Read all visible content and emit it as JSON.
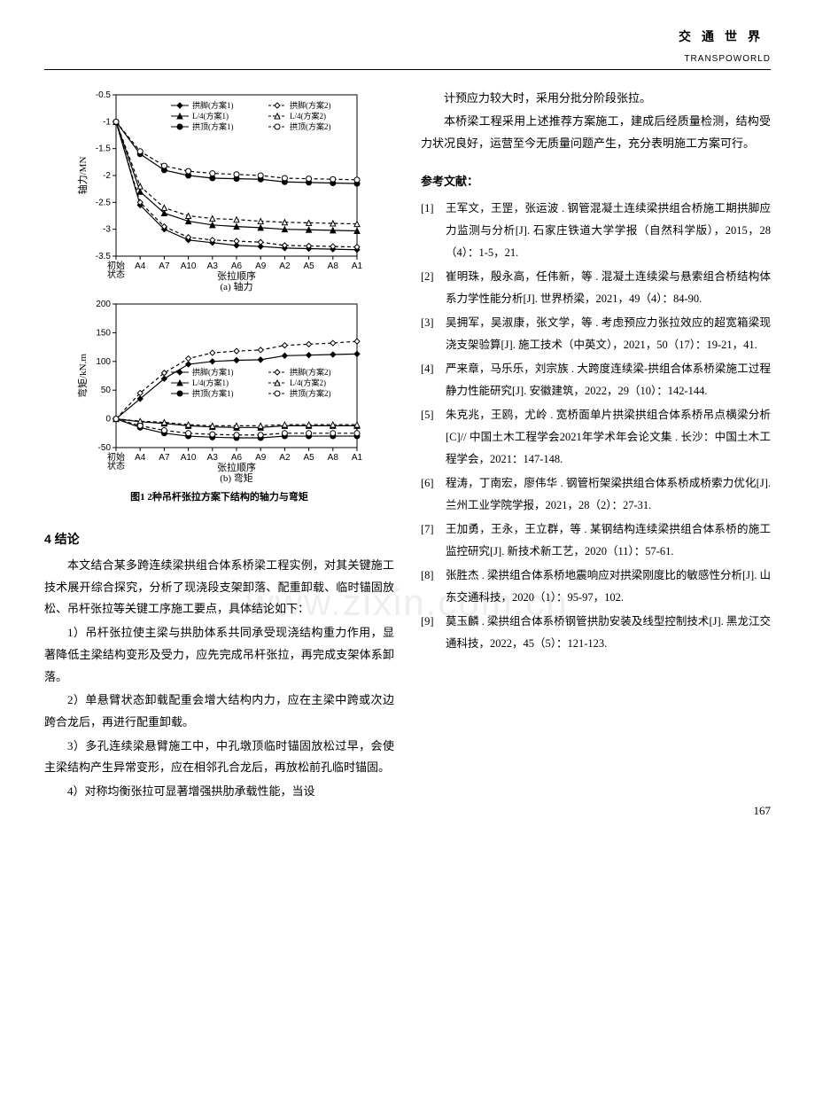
{
  "header": {
    "cn": "交通世界",
    "en": "TRANSPOWORLD"
  },
  "watermark": "www.zixin.com.cn",
  "page_number": "167",
  "chart_a": {
    "type": "line",
    "title": "(a) 轴力",
    "xlabel": "张拉顺序",
    "ylabel": "轴力/MN",
    "ylim": [
      -3.5,
      -0.5
    ],
    "ytick_step": 0.5,
    "x_categories": [
      "初始\n状态",
      "A4",
      "A7",
      "A10",
      "A3",
      "A6",
      "A9",
      "A2",
      "A5",
      "A8",
      "A1"
    ],
    "background_color": "#ffffff",
    "grid_color": "#cccccc",
    "line_color": "#000000",
    "line_width": 1.2,
    "series": [
      {
        "label": "拱脚(方案1)",
        "marker": "diamond-filled",
        "dash": "solid",
        "values": [
          -1.0,
          -2.55,
          -3.0,
          -3.2,
          -3.25,
          -3.3,
          -3.32,
          -3.35,
          -3.36,
          -3.37,
          -3.38
        ]
      },
      {
        "label": "拱脚(方案2)",
        "marker": "diamond-open",
        "dash": "dash",
        "values": [
          -1.0,
          -2.5,
          -2.95,
          -3.15,
          -3.2,
          -3.22,
          -3.24,
          -3.3,
          -3.31,
          -3.32,
          -3.33
        ]
      },
      {
        "label": "L/4(方案1)",
        "marker": "triangle-filled",
        "dash": "solid",
        "values": [
          -1.0,
          -2.3,
          -2.7,
          -2.85,
          -2.92,
          -2.95,
          -2.97,
          -3.0,
          -3.01,
          -3.02,
          -3.03
        ]
      },
      {
        "label": "L/4(方案2)",
        "marker": "triangle-open",
        "dash": "dash",
        "values": [
          -1.0,
          -2.2,
          -2.6,
          -2.75,
          -2.8,
          -2.82,
          -2.85,
          -2.87,
          -2.88,
          -2.89,
          -2.9
        ]
      },
      {
        "label": "拱顶(方案1)",
        "marker": "circle-filled",
        "dash": "solid",
        "values": [
          -1.0,
          -1.6,
          -1.9,
          -2.0,
          -2.05,
          -2.06,
          -2.07,
          -2.12,
          -2.13,
          -2.14,
          -2.15
        ]
      },
      {
        "label": "拱顶(方案2)",
        "marker": "circle-open",
        "dash": "dash",
        "values": [
          -1.0,
          -1.55,
          -1.82,
          -1.92,
          -1.96,
          -1.98,
          -2.0,
          -2.05,
          -2.06,
          -2.07,
          -2.08
        ]
      }
    ],
    "legend_fontsize": 9,
    "tick_fontsize": 10
  },
  "chart_b": {
    "type": "line",
    "title": "(b) 弯矩",
    "xlabel": "张拉顺序",
    "ylabel": "弯矩/kN.m",
    "ylim": [
      -50,
      200
    ],
    "ytick_step": 50,
    "x_categories": [
      "初始\n状态",
      "A4",
      "A7",
      "A10",
      "A3",
      "A6",
      "A9",
      "A2",
      "A5",
      "A8",
      "A1"
    ],
    "background_color": "#ffffff",
    "grid_color": "#cccccc",
    "line_color": "#000000",
    "line_width": 1.2,
    "series": [
      {
        "label": "拱脚(方案1)",
        "marker": "diamond-filled",
        "dash": "solid",
        "values": [
          0,
          35,
          70,
          95,
          100,
          102,
          103,
          110,
          111,
          112,
          113
        ]
      },
      {
        "label": "拱脚(方案2)",
        "marker": "diamond-open",
        "dash": "dash",
        "values": [
          0,
          45,
          80,
          105,
          115,
          118,
          120,
          128,
          130,
          132,
          135
        ]
      },
      {
        "label": "L/4(方案1)",
        "marker": "triangle-filled",
        "dash": "solid",
        "values": [
          0,
          -5,
          -8,
          -12,
          -14,
          -15,
          -15,
          -12,
          -12,
          -12,
          -12
        ]
      },
      {
        "label": "L/4(方案2)",
        "marker": "triangle-open",
        "dash": "dash",
        "values": [
          0,
          -4,
          -6,
          -10,
          -12,
          -12,
          -12,
          -10,
          -10,
          -10,
          -10
        ]
      },
      {
        "label": "拱顶(方案1)",
        "marker": "circle-filled",
        "dash": "solid",
        "values": [
          0,
          -15,
          -25,
          -30,
          -32,
          -33,
          -33,
          -30,
          -30,
          -30,
          -30
        ]
      },
      {
        "label": "拱顶(方案2)",
        "marker": "circle-open",
        "dash": "dash",
        "values": [
          0,
          -12,
          -20,
          -25,
          -27,
          -28,
          -28,
          -25,
          -25,
          -25,
          -25
        ]
      }
    ],
    "legend_fontsize": 9,
    "tick_fontsize": 10
  },
  "figure_caption": "图1 2种吊杆张拉方案下结构的轴力与弯矩",
  "section4_title": "4 结论",
  "body_left": [
    "本文结合某多跨连续梁拱组合体系桥梁工程实例，对其关键施工技术展开综合探究，分析了现浇段支架卸落、配重卸载、临时锚固放松、吊杆张拉等关键工序施工要点，具体结论如下：",
    "1）吊杆张拉使主梁与拱肋体系共同承受现浇结构重力作用，显著降低主梁结构变形及受力，应先完成吊杆张拉，再完成支架体系卸落。",
    "2）单悬臂状态卸载配重会增大结构内力，应在主梁中跨或次边跨合龙后，再进行配重卸载。",
    "3）多孔连续梁悬臂施工中，中孔墩顶临时锚固放松过早，会使主梁结构产生异常变形，应在相邻孔合龙后，再放松前孔临时锚固。",
    "4）对称均衡张拉可显著增强拱肋承载性能，当设"
  ],
  "body_right": [
    "计预应力较大时，采用分批分阶段张拉。",
    "本桥梁工程采用上述推荐方案施工，建成后经质量检测，结构受力状况良好，运营至今无质量问题产生，充分表明施工方案可行。"
  ],
  "ref_title": "参考文献：",
  "references": [
    {
      "n": "[1]",
      "t": "王军文，王罡，张运波 . 钢管混凝土连续梁拱组合桥施工期拱脚应力监测与分析[J]. 石家庄铁道大学学报（自然科学版），2015，28（4）：1-5，21."
    },
    {
      "n": "[2]",
      "t": "崔明珠，殷永高，任伟新，等 . 混凝土连续梁与悬索组合桥结构体系力学性能分析[J]. 世界桥梁，2021，49（4）：84-90."
    },
    {
      "n": "[3]",
      "t": "吴拥军，吴淑康，张文学，等 . 考虑预应力张拉效应的超宽箱梁现浇支架验算[J]. 施工技术（中英文），2021，50（17）：19-21，41."
    },
    {
      "n": "[4]",
      "t": "严来章，马乐乐，刘宗族 . 大跨度连续梁-拱组合体系桥梁施工过程静力性能研究[J]. 安徽建筑，2022，29（10）：142-144."
    },
    {
      "n": "[5]",
      "t": "朱克兆，王鸥，尤岭 . 宽桥面单片拱梁拱组合体系桥吊点横梁分析[C]// 中国土木工程学会2021年学术年会论文集 . 长沙：中国土木工程学会，2021：147-148."
    },
    {
      "n": "[6]",
      "t": "程涛，丁南宏，廖伟华 . 钢管桁架梁拱组合体系桥成桥索力优化[J]. 兰州工业学院学报，2021，28（2）：27-31."
    },
    {
      "n": "[7]",
      "t": "王加勇，王永，王立群，等 . 某钢结构连续梁拱组合体系桥的施工监控研究[J]. 新技术新工艺，2020（11）：57-61."
    },
    {
      "n": "[8]",
      "t": "张胜杰 . 梁拱组合体系桥地震响应对拱梁刚度比的敏感性分析[J]. 山东交通科技，2020（1）：95-97，102."
    },
    {
      "n": "[9]",
      "t": "莫玉麟 . 梁拱组合体系桥钢管拱肋安装及线型控制技术[J]. 黑龙江交通科技，2022，45（5）：121-123."
    }
  ]
}
